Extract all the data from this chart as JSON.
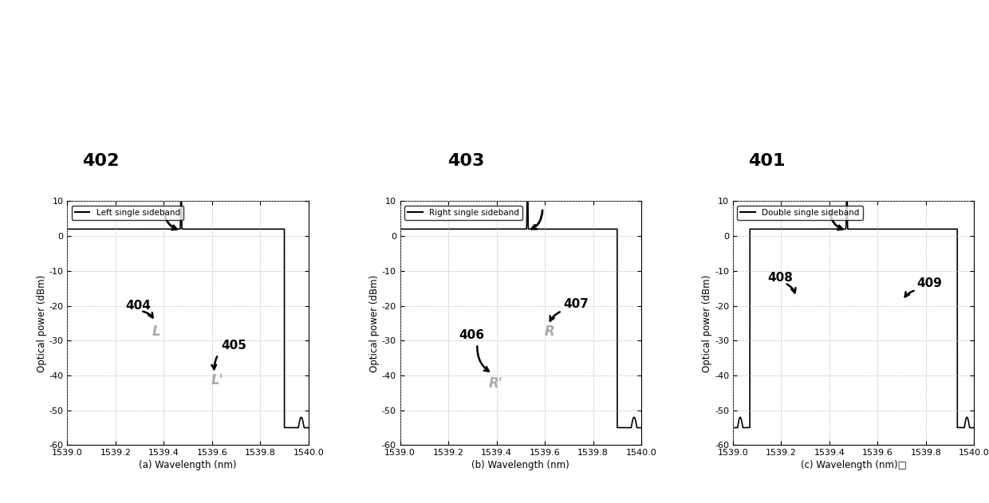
{
  "xlim": [
    1539.0,
    1540.0
  ],
  "ylim": [
    -60,
    10
  ],
  "yticks": [
    10,
    0,
    -10,
    -20,
    -30,
    -40,
    -50,
    -60
  ],
  "xtick_vals": [
    1539.0,
    1539.2,
    1539.4,
    1539.6,
    1539.8,
    1540.0
  ],
  "xtick_labels": [
    "1539.0",
    "1539.2",
    "1539.4",
    "1539.6",
    "1539.8",
    "1540.0"
  ],
  "ylabel": "Optical power (dBm)",
  "xlabels": [
    "(a) Wavelength (nm)",
    "(b) Wavelength (nm)",
    "(c) Wavelength (nm)□"
  ],
  "legends": [
    "Left single sideband",
    "Right single sideband",
    "Double single sideband"
  ],
  "panel_numbers": [
    "402",
    "403",
    "401"
  ],
  "line_color": "#000000",
  "grid_color": "#bbbbbb",
  "bg_color": "#ffffff",
  "gray_annot": "#aaaaaa"
}
